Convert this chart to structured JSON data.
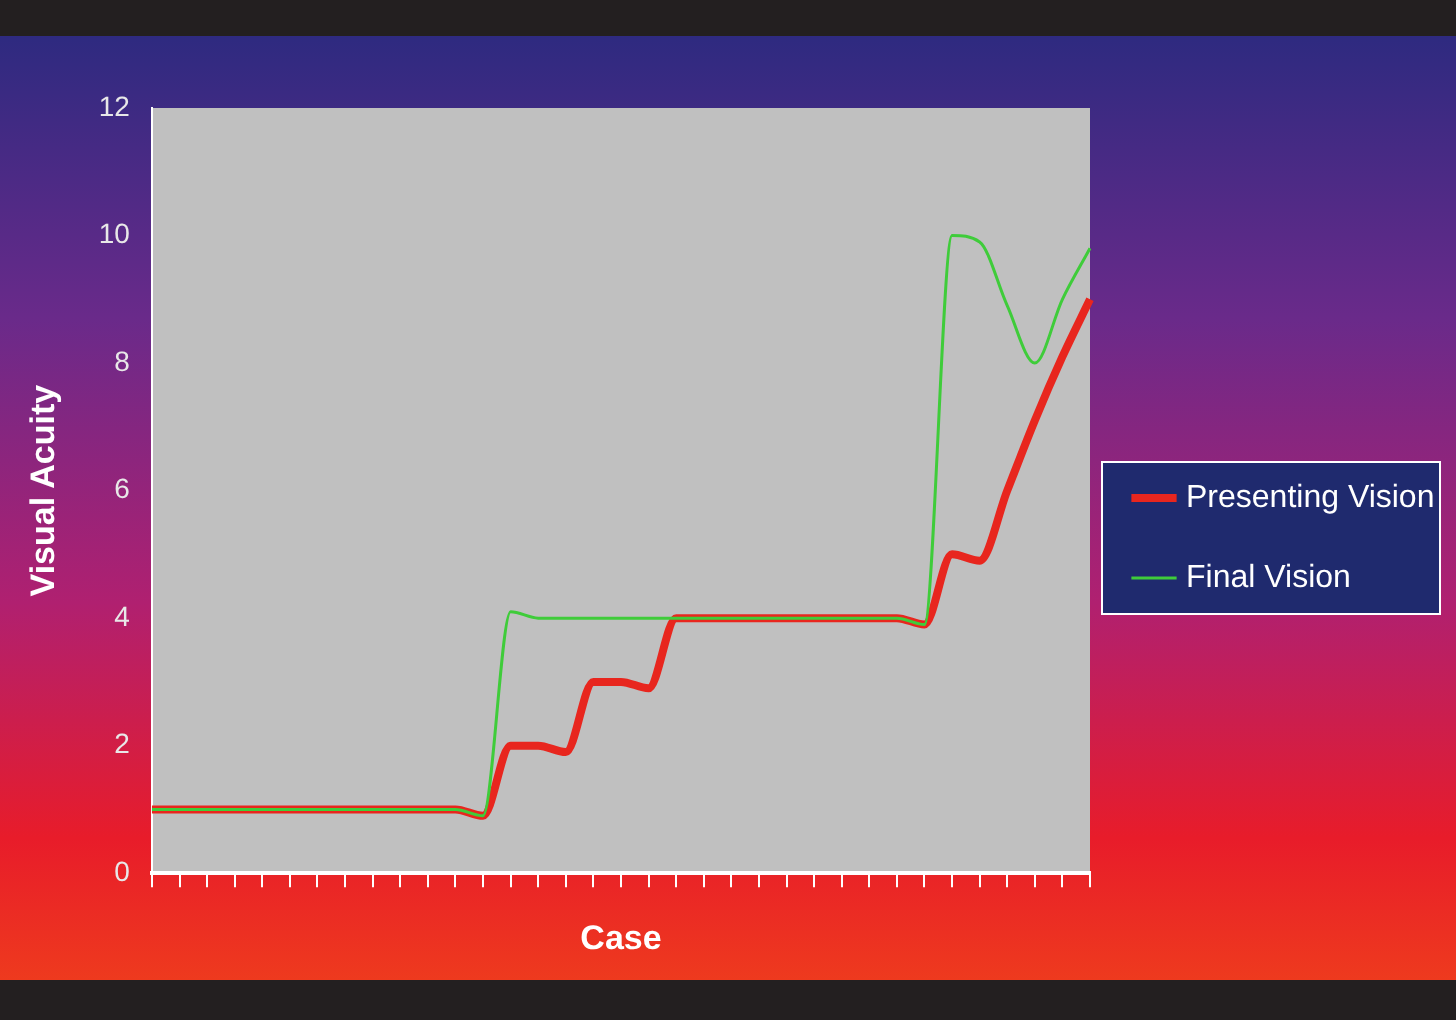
{
  "chart_data": {
    "type": "line",
    "xlabel": "Case",
    "ylabel": "Visual Acuity",
    "categories": [
      null,
      null,
      null,
      null,
      null,
      null,
      null,
      null,
      null,
      null,
      null,
      null,
      null,
      null,
      null,
      null,
      null,
      null,
      null,
      null,
      null,
      null,
      null,
      null,
      null,
      null,
      null,
      null,
      null,
      null,
      null,
      null,
      null,
      null,
      null
    ],
    "series": [
      {
        "name": "Presenting Vision",
        "color": "#e8261e",
        "values": [
          1,
          1,
          1,
          1,
          1,
          1,
          1,
          1,
          1,
          1,
          1,
          1,
          0.9,
          2,
          2,
          1.9,
          3,
          3,
          2.9,
          4,
          4,
          4,
          4,
          4,
          4,
          4,
          4,
          4,
          3.9,
          5,
          4.9,
          6,
          7.1,
          8.1,
          9
        ]
      },
      {
        "name": "Final Vision",
        "color": "#3fcc3a",
        "values": [
          1,
          1,
          1,
          1,
          1,
          1,
          1,
          1,
          1,
          1,
          1,
          1,
          0.9,
          4.1,
          4,
          4,
          4,
          4,
          4,
          4,
          4,
          4,
          4,
          4,
          4,
          4,
          4,
          4,
          3.9,
          10,
          9.9,
          8.9,
          8,
          9,
          9.8
        ]
      }
    ],
    "ylim": [
      0,
      12
    ],
    "yticks": [
      0,
      2,
      4,
      6,
      8,
      10,
      12
    ],
    "tick_labels": "y",
    "legend": "right",
    "marker": "none"
  }
}
